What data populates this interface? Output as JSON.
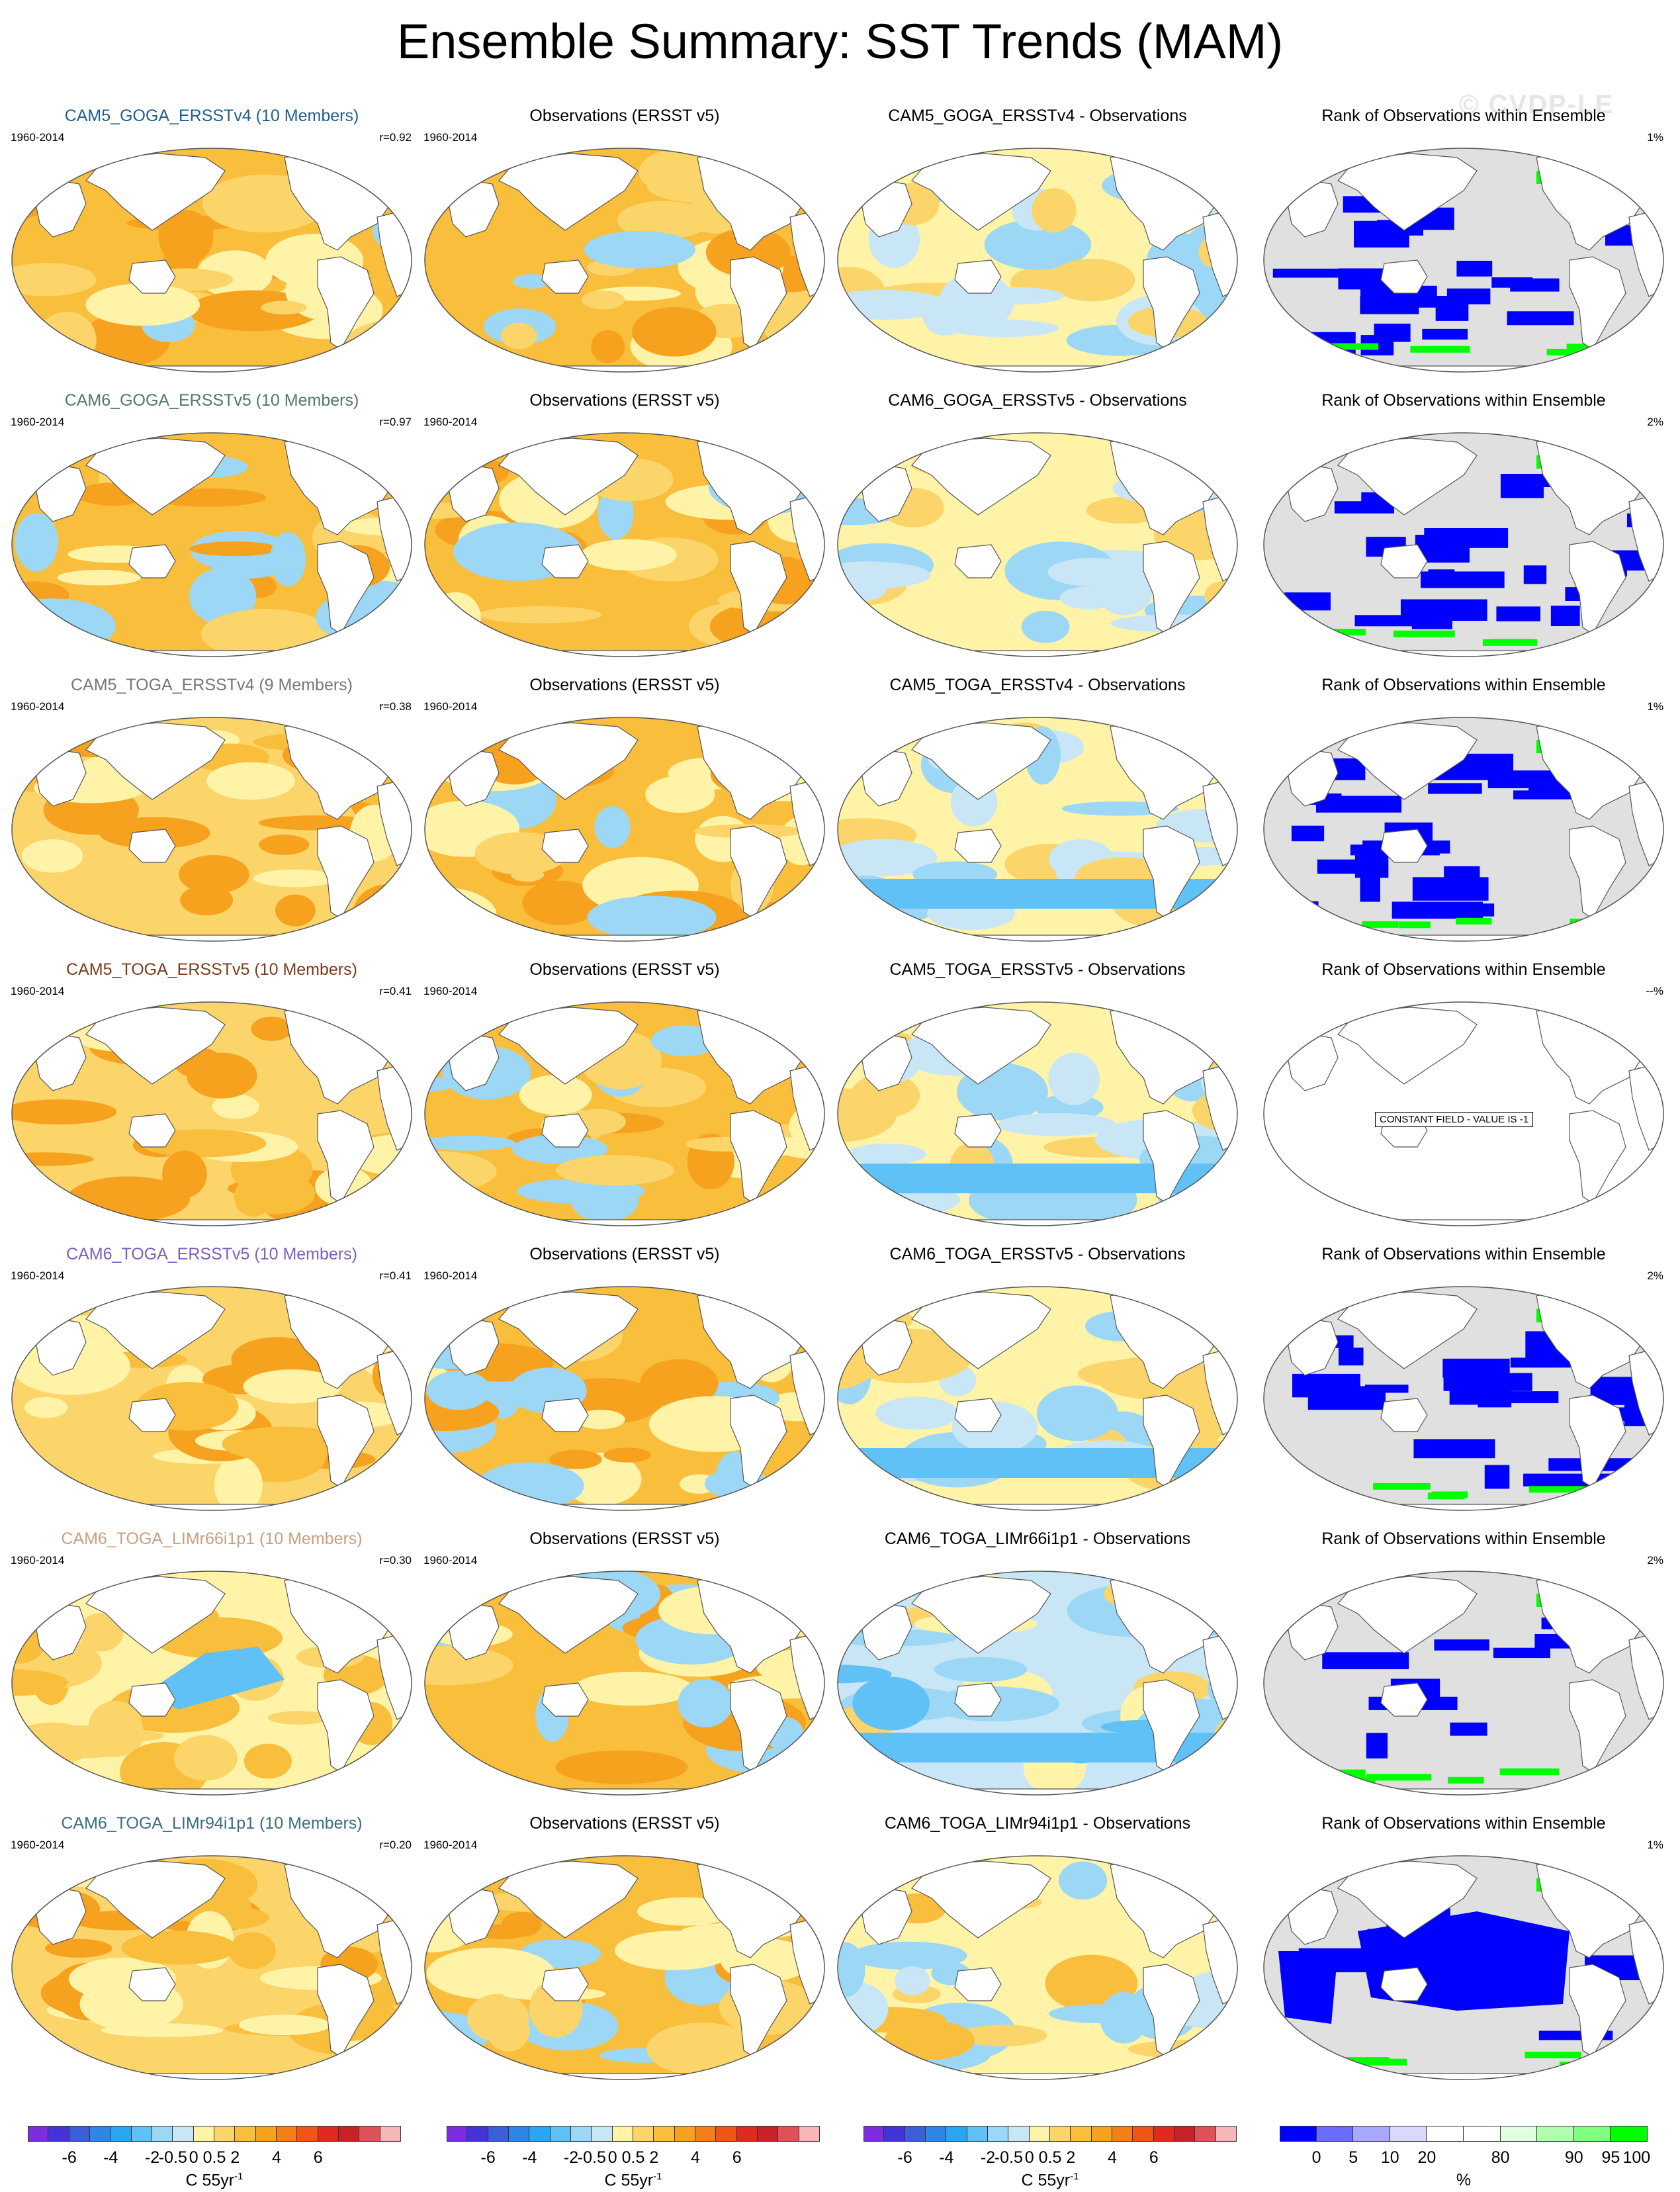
{
  "title": "Ensemble Summary: SST Trends (MAM)",
  "watermark": "© CVDP-LE",
  "period": "1960-2014",
  "obs_title": "Observations (ERSST v5)",
  "rank_title": "Rank of Observations within Ensemble",
  "constant_field_note": "CONSTANT FIELD - VALUE IS -1",
  "rows": [
    {
      "model_title": "CAM5_GOGA_ERSSTv4 (10 Members)",
      "title_color": "#1f5f8b",
      "r": "r=0.92",
      "diff_title": "CAM5_GOGA_ERSSTv4 - Observations",
      "rank_pct": "1%",
      "model_pattern": "warm",
      "diff_pattern": "mixed-light",
      "rank_pattern": "rank"
    },
    {
      "model_title": "CAM6_GOGA_ERSSTv5 (10 Members)",
      "title_color": "#4f7a62",
      "r": "r=0.97",
      "diff_title": "CAM6_GOGA_ERSSTv5 - Observations",
      "rank_pct": "2%",
      "model_pattern": "warm",
      "diff_pattern": "mixed-light",
      "rank_pattern": "rank"
    },
    {
      "model_title": "CAM5_TOGA_ERSSTv4 (9 Members)",
      "title_color": "#777777",
      "r": "r=0.38",
      "diff_title": "CAM5_TOGA_ERSSTv4 - Observations",
      "rank_pct": "1%",
      "model_pattern": "warm-light",
      "diff_pattern": "cool-south",
      "rank_pattern": "rank"
    },
    {
      "model_title": "CAM5_TOGA_ERSSTv5 (10 Members)",
      "title_color": "#7a3b1a",
      "r": "r=0.41",
      "diff_title": "CAM5_TOGA_ERSSTv5 - Observations",
      "rank_pct": "--%",
      "model_pattern": "warm-light",
      "diff_pattern": "cool-south",
      "rank_pattern": "constant"
    },
    {
      "model_title": "CAM6_TOGA_ERSSTv5 (10 Members)",
      "title_color": "#7b5fbf",
      "r": "r=0.41",
      "diff_title": "CAM6_TOGA_ERSSTv5 - Observations",
      "rank_pct": "2%",
      "model_pattern": "warm-light",
      "diff_pattern": "cool-south",
      "rank_pattern": "rank"
    },
    {
      "model_title": "CAM6_TOGA_LIMr66i1p1 (10 Members)",
      "title_color": "#c8a080",
      "r": "r=0.30",
      "diff_title": "CAM6_TOGA_LIMr66i1p1 - Observations",
      "rank_pct": "2%",
      "model_pattern": "pacific-cool",
      "diff_pattern": "cool-strong",
      "rank_pattern": "rank-sparse"
    },
    {
      "model_title": "CAM6_TOGA_LIMr94i1p1 (10 Members)",
      "title_color": "#3a6f7a",
      "r": "r=0.20",
      "diff_title": "CAM6_TOGA_LIMr94i1p1 - Observations",
      "rank_pct": "1%",
      "model_pattern": "warm-light",
      "diff_pattern": "mixed-warm",
      "rank_pattern": "rank-pacific"
    }
  ],
  "sst_colorbar": {
    "colors": [
      "#7a2ee0",
      "#4433d6",
      "#3a5fd9",
      "#2f86e6",
      "#29a6f2",
      "#5fc1f5",
      "#9cd7f6",
      "#c8e6f5",
      "#fff3a8",
      "#fcd56a",
      "#f9be3c",
      "#f7a21e",
      "#f47f18",
      "#f05515",
      "#e02a20",
      "#c7222a",
      "#e0525a",
      "#f7b6b8"
    ],
    "ticks": [
      "-6",
      "-4",
      "-2",
      "-0.5",
      "0",
      "0.5",
      "2",
      "4",
      "6"
    ],
    "units": "C 55yr",
    "units_exp": "-1"
  },
  "rank_colorbar": {
    "colors": [
      "#0000ff",
      "#6b6bff",
      "#a8a8ff",
      "#d9d9ff",
      "#ffffff",
      "#ffffff",
      "#e3ffe3",
      "#b0ffb0",
      "#80ff80",
      "#00ff00"
    ],
    "ticks": [
      "0",
      "5",
      "10",
      "20",
      "80",
      "90",
      "95",
      "100"
    ],
    "units": "%"
  }
}
